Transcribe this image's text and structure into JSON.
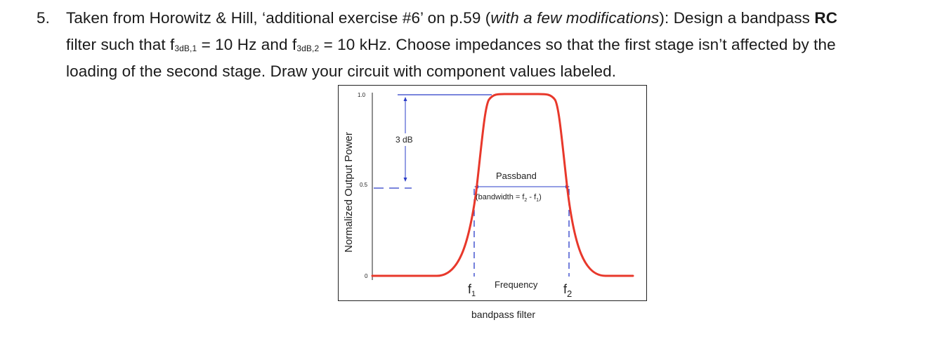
{
  "problem": {
    "number": "5.",
    "line1_a": "Taken from Horowitz & Hill, ‘additional exercise #6’ on p.59 (",
    "line1_italic": "with a few modifications",
    "line1_b": "):  Design a bandpass ",
    "line1_bold": "RC",
    "line2_a": "filter such that f",
    "line2_sub1": "3dB,1",
    "line2_b": " = 10 Hz and f",
    "line2_sub2": "3dB,2",
    "line2_c": " = 10 kHz.  Choose impedances so that the first stage isn’t affected by the",
    "line3": "loading of the second stage.  Draw your circuit with component values labeled."
  },
  "figure": {
    "ylabel": "Normalized Output Power",
    "y_ticks": [
      "1.0",
      "0.5",
      "0"
    ],
    "annotation_3db": "3 dB",
    "passband_label": "Passband",
    "bandwidth_a": "(bandwidth = f",
    "bandwidth_sub2": "2",
    "bandwidth_b": " - f",
    "bandwidth_sub1": "1",
    "bandwidth_c": ")",
    "xlabel": "Frequency",
    "f1_label": "f",
    "f1_sub": "1",
    "f2_label": "f",
    "f2_sub": "2",
    "caption": "bandpass filter",
    "colors": {
      "response_curve": "#e8382b",
      "guide_lines": "#2a3cc8",
      "axis": "#222222"
    }
  }
}
